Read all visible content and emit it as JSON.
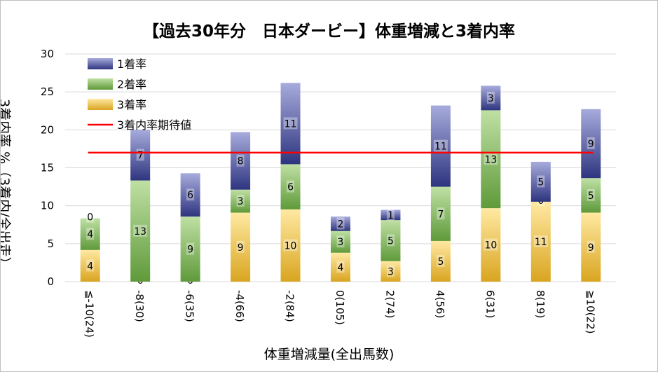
{
  "chart_data": {
    "type": "bar",
    "stacked": true,
    "title": "【過去30年分　日本ダービー】体重増減と3着内率",
    "xlabel": "体重増減量(全出馬数)",
    "ylabel": "3着内率 %（3着内/全出走）",
    "ylim": [
      0,
      30
    ],
    "yticks": [
      0,
      5,
      10,
      15,
      20,
      25,
      30
    ],
    "grid": true,
    "legend_position": "top-left",
    "categories": [
      "≦-10(24)",
      "-8(30)",
      "-6(35)",
      "-4(66)",
      "-2(84)",
      "0(105)",
      "2(74)",
      "4(56)",
      "6(31)",
      "8(19)",
      "≧10(22)"
    ],
    "series": [
      {
        "name": "3着率",
        "color": "#d9a520",
        "values": [
          4.17,
          0,
          0,
          9.09,
          9.52,
          3.81,
          2.7,
          5.36,
          9.68,
          10.53,
          9.09
        ],
        "counts": [
          "4",
          "0",
          "0",
          "9",
          "10",
          "4",
          "3",
          "5",
          "10",
          "11",
          "9"
        ]
      },
      {
        "name": "2着率",
        "color": "#5f9a3a",
        "values": [
          4.17,
          13.33,
          8.57,
          3.03,
          5.95,
          2.86,
          5.41,
          7.14,
          12.9,
          0,
          4.55
        ],
        "counts": [
          "4",
          "13",
          "9",
          "3",
          "6",
          "3",
          "5",
          "7",
          "13",
          "0",
          "5"
        ]
      },
      {
        "name": "1着率",
        "color": "#2e357f",
        "values": [
          0,
          6.67,
          5.71,
          7.58,
          10.71,
          1.9,
          1.35,
          10.71,
          3.23,
          5.26,
          9.09
        ],
        "counts": [
          "0",
          "7",
          "6",
          "8",
          "11",
          "2",
          "1",
          "11",
          "3",
          "5",
          "9"
        ]
      }
    ],
    "reference_line": {
      "name": "3着内率期待値",
      "value": 17,
      "color": "#ff0000"
    },
    "legend": [
      {
        "label": "1着率",
        "kind": "swatch",
        "color": "#2e357f"
      },
      {
        "label": "2着率",
        "kind": "swatch",
        "color": "#5f9a3a"
      },
      {
        "label": "3着率",
        "kind": "swatch",
        "color": "#d9a520"
      },
      {
        "label": "3着内率期待値",
        "kind": "line",
        "color": "#ff0000"
      }
    ],
    "gradient_light": {
      "#2e357f": "#a7abdc",
      "#5f9a3a": "#bfe0a4",
      "#d9a520": "#ffe9a2"
    }
  }
}
